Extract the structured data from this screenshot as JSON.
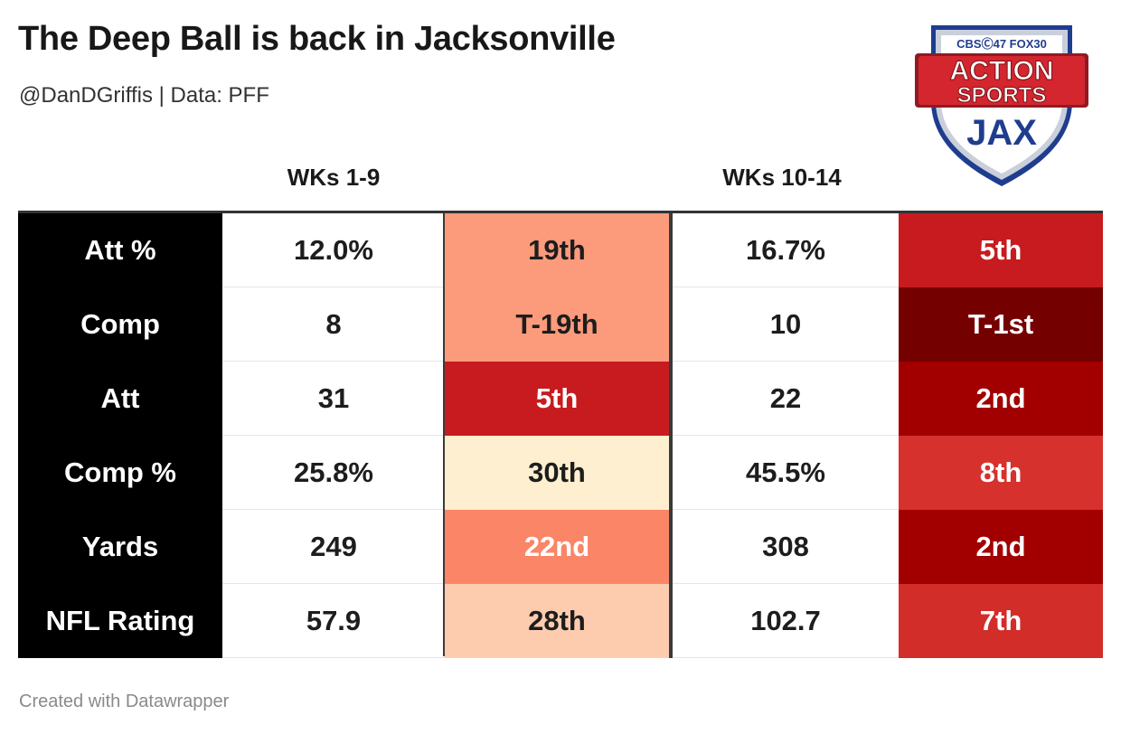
{
  "header": {
    "title": "The Deep Ball is back in Jacksonville",
    "subtitle": "@DanDGriffis | Data: PFF"
  },
  "logo": {
    "top_text": "CBSⒸ47 FOX30",
    "line1": "ACTION",
    "line2": "SPORTS",
    "line3": "JAX"
  },
  "footer": {
    "credit": "Created with Datawrapper"
  },
  "colors": {
    "label_bg": "#000000",
    "rank_scale": {
      "19th": "#fc9a7c",
      "T-19th": "#fc9a7c",
      "5th": "#c71b1f",
      "30th": "#fdefcf",
      "22nd": "#fb8567",
      "28th": "#fdccaf",
      "T-1st": "#740000",
      "2nd": "#a20000",
      "8th": "#d7312d",
      "7th": "#d22d29"
    }
  },
  "chart_data": {
    "type": "table",
    "title": "The Deep Ball is back in Jacksonville",
    "subtitle": "@DanDGriffis | Data: PFF",
    "groups": [
      "WKs 1-9",
      "WKs 10-14"
    ],
    "rows": [
      {
        "label": "Att %",
        "wk1_9_value": "12.0%",
        "wk1_9_rank": "19th",
        "wk1_9_rank_color": "#fc9a7c",
        "wk1_9_rank_text": "#1d1d1d",
        "wk10_14_value": "16.7%",
        "wk10_14_rank": "5th",
        "wk10_14_rank_color": "#c71b1f",
        "wk10_14_rank_text": "#ffffff"
      },
      {
        "label": "Comp",
        "wk1_9_value": "8",
        "wk1_9_rank": "T-19th",
        "wk1_9_rank_color": "#fc9a7c",
        "wk1_9_rank_text": "#1d1d1d",
        "wk10_14_value": "10",
        "wk10_14_rank": "T-1st",
        "wk10_14_rank_color": "#740000",
        "wk10_14_rank_text": "#ffffff"
      },
      {
        "label": "Att",
        "wk1_9_value": "31",
        "wk1_9_rank": "5th",
        "wk1_9_rank_color": "#c71b1f",
        "wk1_9_rank_text": "#ffffff",
        "wk10_14_value": "22",
        "wk10_14_rank": "2nd",
        "wk10_14_rank_color": "#a20000",
        "wk10_14_rank_text": "#ffffff"
      },
      {
        "label": "Comp %",
        "wk1_9_value": "25.8%",
        "wk1_9_rank": "30th",
        "wk1_9_rank_color": "#fdefcf",
        "wk1_9_rank_text": "#1d1d1d",
        "wk10_14_value": "45.5%",
        "wk10_14_rank": "8th",
        "wk10_14_rank_color": "#d7312d",
        "wk10_14_rank_text": "#ffffff"
      },
      {
        "label": "Yards",
        "wk1_9_value": "249",
        "wk1_9_rank": "22nd",
        "wk1_9_rank_color": "#fb8567",
        "wk1_9_rank_text": "#ffffff",
        "wk10_14_value": "308",
        "wk10_14_rank": "2nd",
        "wk10_14_rank_color": "#a20000",
        "wk10_14_rank_text": "#ffffff"
      },
      {
        "label": "NFL Rating",
        "wk1_9_value": "57.9",
        "wk1_9_rank": "28th",
        "wk1_9_rank_color": "#fdccaf",
        "wk1_9_rank_text": "#1d1d1d",
        "wk10_14_value": "102.7",
        "wk10_14_rank": "7th",
        "wk10_14_rank_color": "#d22d29",
        "wk10_14_rank_text": "#ffffff"
      }
    ]
  }
}
